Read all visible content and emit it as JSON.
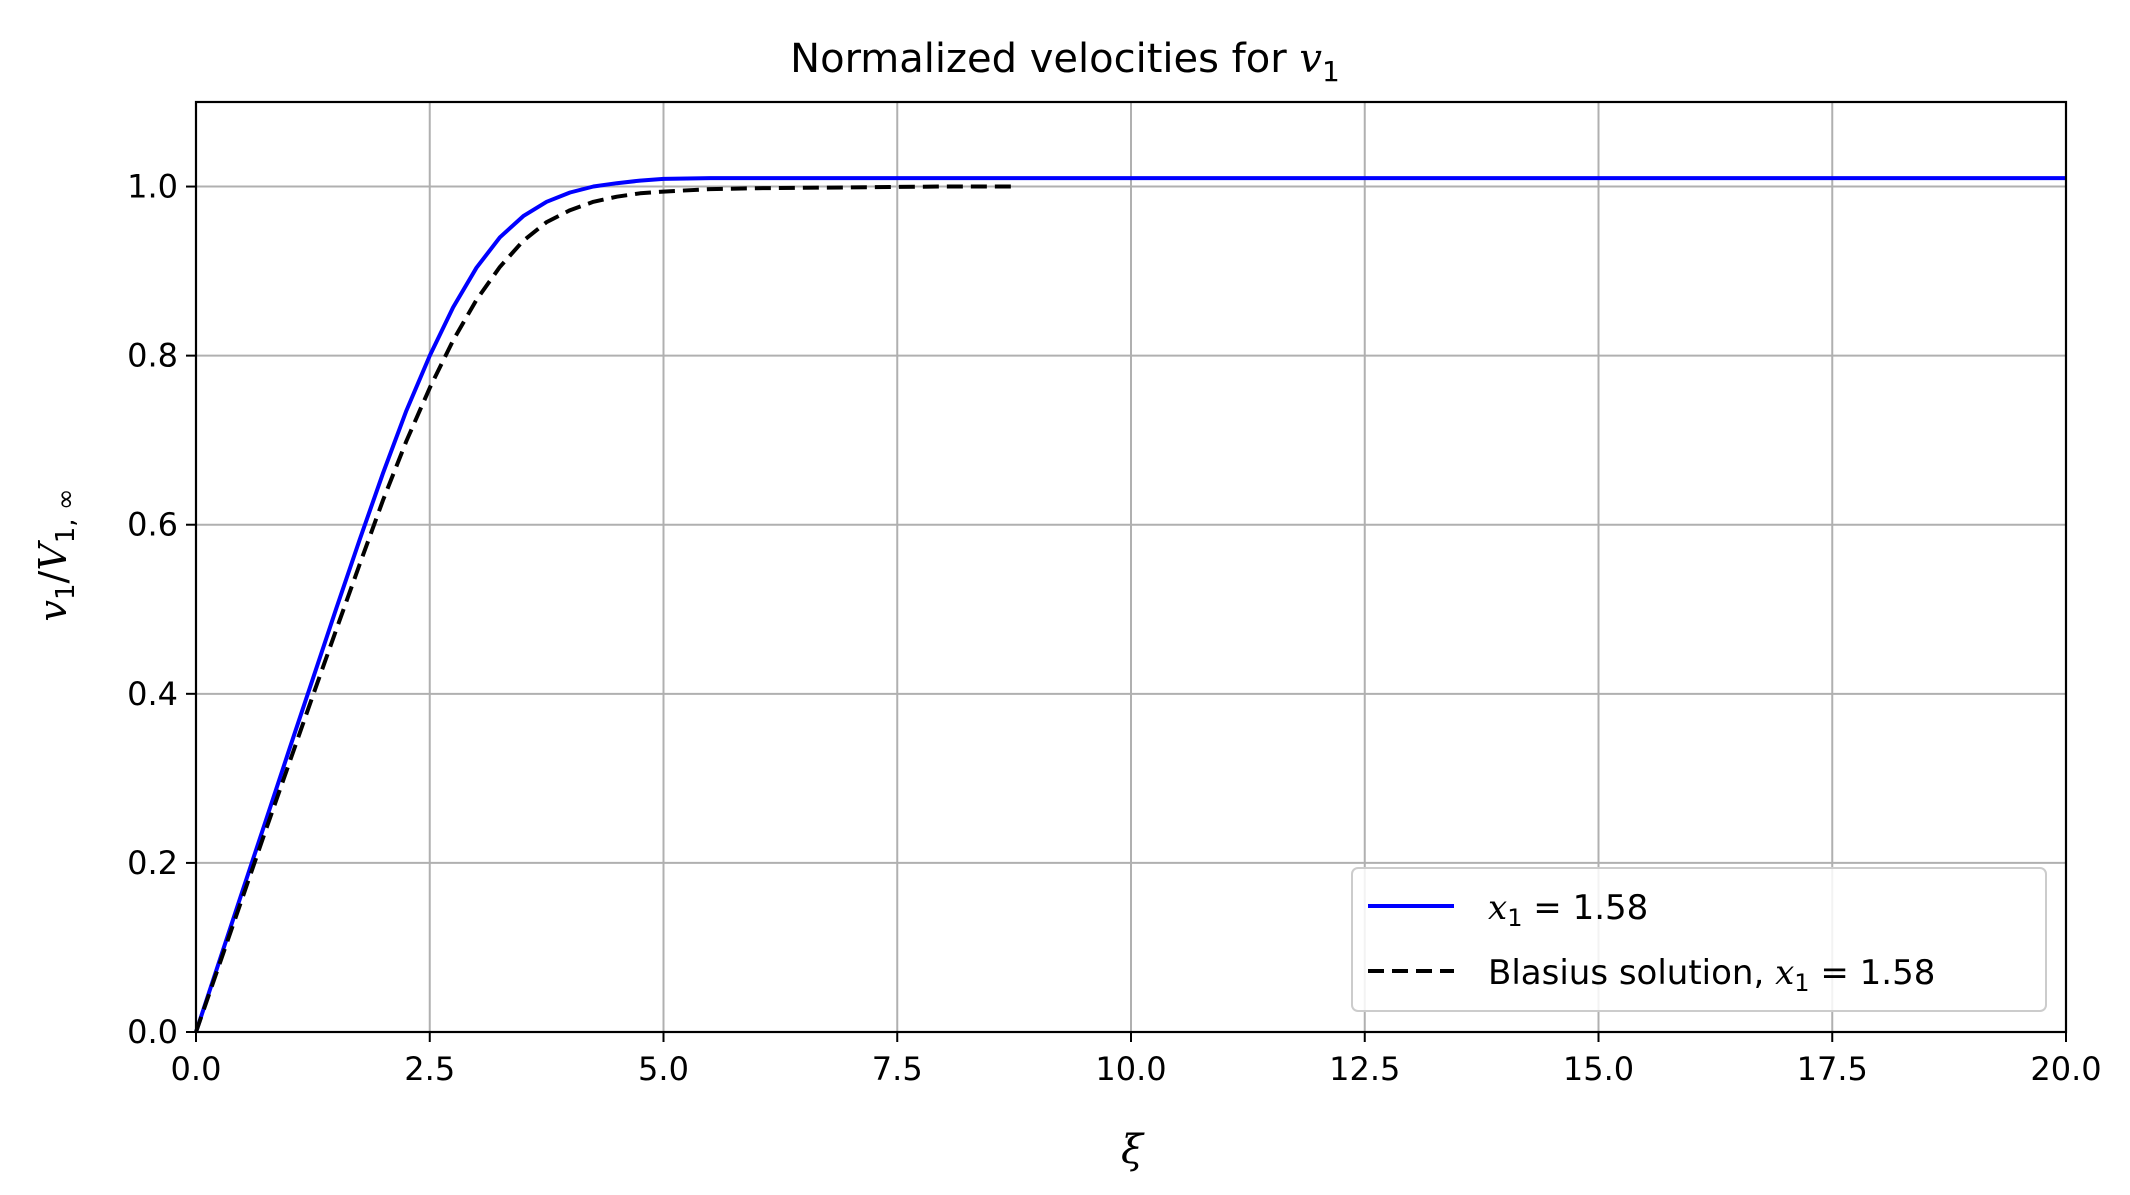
{
  "chart_data": {
    "type": "line",
    "title": "Normalized velocities for v₁",
    "title_parts": {
      "text": "Normalized velocities for ",
      "var": "v",
      "sub": "1"
    },
    "xlabel": "ξ",
    "ylabel": "v₁/V₁,∞",
    "ylabel_parts": {
      "v": "v",
      "v_sub": "1",
      "V": "V",
      "V_sub": "1, ∞"
    },
    "xlim": [
      0,
      20
    ],
    "ylim": [
      0,
      1.1
    ],
    "xticks": [
      0,
      2.5,
      5,
      7.5,
      10,
      12.5,
      15,
      17.5,
      20
    ],
    "xtick_labels": [
      "0.0",
      "2.5",
      "5.0",
      "7.5",
      "10.0",
      "12.5",
      "15.0",
      "17.5",
      "20.0"
    ],
    "yticks": [
      0,
      0.2,
      0.4,
      0.6,
      0.8,
      1.0
    ],
    "ytick_labels": [
      "0.0",
      "0.2",
      "0.4",
      "0.6",
      "0.8",
      "1.0"
    ],
    "grid": true,
    "legend_position": "lower-right",
    "series": [
      {
        "name": "x₁ = 1.58",
        "legend_parts": {
          "prefix": "",
          "var": "x",
          "sub": "1",
          "suffix": " = 1.58"
        },
        "color": "#0000ff",
        "style": "solid",
        "x": [
          0,
          0.25,
          0.5,
          0.75,
          1.0,
          1.25,
          1.5,
          1.75,
          2.0,
          2.25,
          2.5,
          2.75,
          3.0,
          3.25,
          3.5,
          3.75,
          4.0,
          4.25,
          4.5,
          4.75,
          5.0,
          5.5,
          6.0,
          7.0,
          8.0,
          10.0,
          12.0,
          14.0,
          16.0,
          18.0,
          20.0
        ],
        "y": [
          0,
          0.084,
          0.168,
          0.251,
          0.335,
          0.418,
          0.501,
          0.582,
          0.661,
          0.735,
          0.8,
          0.857,
          0.904,
          0.94,
          0.965,
          0.982,
          0.993,
          1.0,
          1.004,
          1.007,
          1.009,
          1.01,
          1.01,
          1.01,
          1.01,
          1.01,
          1.01,
          1.01,
          1.01,
          1.01,
          1.01
        ]
      },
      {
        "name": "Blasius solution, x₁ = 1.58",
        "legend_parts": {
          "prefix": "Blasius solution, ",
          "var": "x",
          "sub": "1",
          "suffix": " = 1.58"
        },
        "color": "#000000",
        "style": "dashed",
        "x": [
          0,
          0.25,
          0.5,
          0.75,
          1.0,
          1.25,
          1.5,
          1.75,
          2.0,
          2.25,
          2.5,
          2.75,
          3.0,
          3.25,
          3.5,
          3.75,
          4.0,
          4.25,
          4.5,
          4.75,
          5.0,
          5.5,
          6.0,
          7.0,
          8.0,
          8.8
        ],
        "y": [
          0,
          0.08,
          0.16,
          0.24,
          0.319,
          0.398,
          0.476,
          0.553,
          0.629,
          0.699,
          0.762,
          0.818,
          0.866,
          0.905,
          0.936,
          0.958,
          0.972,
          0.982,
          0.988,
          0.992,
          0.994,
          0.997,
          0.998,
          0.999,
          1.0,
          1.0
        ]
      }
    ]
  }
}
